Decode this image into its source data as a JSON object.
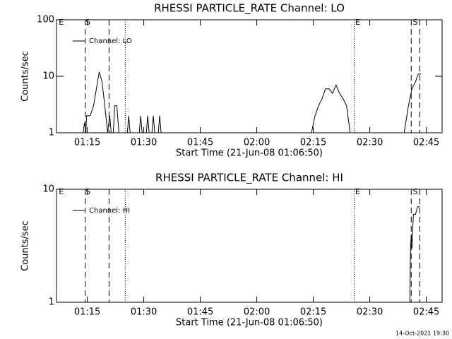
{
  "chart_data": [
    {
      "type": "line",
      "title": "RHESSI PARTICLE_RATE Channel: LO",
      "xlabel": "Start Time (21-Jun-08 01:06:50)",
      "ylabel": "Counts/sec",
      "log_y": true,
      "ylim": [
        1,
        100
      ],
      "yticks": [
        1,
        10,
        100
      ],
      "xlim": [
        66.83,
        169.2
      ],
      "xticks": [
        {
          "value": 75,
          "label": "01:15"
        },
        {
          "value": 90,
          "label": "01:30"
        },
        {
          "value": 105,
          "label": "01:45"
        },
        {
          "value": 120,
          "label": "02:00"
        },
        {
          "value": 135,
          "label": "02:15"
        },
        {
          "value": 150,
          "label": "02:30"
        },
        {
          "value": 165,
          "label": "02:45"
        }
      ],
      "markers": [
        {
          "x": 74.44,
          "style": "dashed"
        },
        {
          "x": 80.78,
          "style": "dashed"
        },
        {
          "x": 85.07,
          "style": "dotted"
        },
        {
          "x": 145.9,
          "style": "dotted"
        },
        {
          "x": 161.0,
          "style": "dashed"
        },
        {
          "x": 163.25,
          "style": "dashed"
        }
      ],
      "annotations": [
        {
          "text": "E",
          "x": 68.1
        },
        {
          "text": "S",
          "x": 75.2
        },
        {
          "text": "E",
          "x": 146.8
        },
        {
          "text": "S",
          "x": 162.1
        }
      ],
      "series": [
        {
          "name": "Channel: LO",
          "color": "#000000",
          "x": [
            73.88,
            74.25,
            74.63,
            74.81,
            75.75,
            76.68,
            77.43,
            78.17,
            78.92,
            79.66,
            80.41,
            80.97,
            81.34,
            81.9,
            82.28,
            82.84,
            83.4,
            null,
            85.63,
            86.0,
            86.38,
            null,
            88.81,
            89.18,
            89.55,
            null,
            90.67,
            91.04,
            91.42,
            null,
            92.16,
            92.54,
            92.91,
            null,
            93.84,
            94.22,
            94.59,
            null,
            134.51,
            135.45,
            136.38,
            137.31,
            138.25,
            139.18,
            140.11,
            141.04,
            141.98,
            142.91,
            143.84,
            144.78,
            null,
            159.14,
            160.26,
            161.19,
            162.13,
            162.87,
            163.62
          ],
          "values": [
            1,
            1.5,
            1,
            2,
            2,
            3,
            6,
            12,
            8,
            3,
            1,
            2,
            1,
            1,
            3,
            3,
            1,
            null,
            1,
            2,
            1,
            null,
            1,
            2,
            1,
            null,
            1,
            2,
            1,
            null,
            1,
            2,
            1,
            null,
            1,
            2,
            1,
            null,
            1,
            2,
            3,
            4,
            6,
            6,
            5,
            7,
            5,
            4,
            3,
            1,
            null,
            1,
            3,
            6,
            8,
            11,
            11
          ]
        }
      ]
    },
    {
      "type": "line",
      "title": "RHESSI PARTICLE_RATE Channel: HI",
      "xlabel": "Start Time (21-Jun-08 01:06:50)",
      "ylabel": "Counts/sec",
      "log_y": true,
      "ylim": [
        1,
        10
      ],
      "yticks": [
        1,
        10
      ],
      "xlim": [
        66.83,
        169.2
      ],
      "xticks": [
        {
          "value": 75,
          "label": "01:15"
        },
        {
          "value": 90,
          "label": "01:30"
        },
        {
          "value": 105,
          "label": "01:45"
        },
        {
          "value": 120,
          "label": "02:00"
        },
        {
          "value": 135,
          "label": "02:15"
        },
        {
          "value": 150,
          "label": "02:30"
        },
        {
          "value": 165,
          "label": "02:45"
        }
      ],
      "markers": [
        {
          "x": 74.44,
          "style": "dashed"
        },
        {
          "x": 80.78,
          "style": "dashed"
        },
        {
          "x": 85.07,
          "style": "dotted"
        },
        {
          "x": 145.9,
          "style": "dotted"
        },
        {
          "x": 161.0,
          "style": "dashed"
        },
        {
          "x": 163.25,
          "style": "dashed"
        }
      ],
      "annotations": [
        {
          "text": "E",
          "x": 68.1
        },
        {
          "text": "S",
          "x": 75.2
        },
        {
          "text": "E",
          "x": 146.8
        },
        {
          "text": "S",
          "x": 162.1
        }
      ],
      "series": [
        {
          "name": "Channel: HI",
          "color": "#000000",
          "x": [
            160.63,
            160.82,
            161.0,
            161.19,
            161.57,
            162.13,
            162.69,
            163.25
          ],
          "values": [
            1,
            3,
            4,
            3,
            6,
            6,
            7,
            7
          ]
        }
      ]
    }
  ],
  "footer": "14-Oct-2021 19:30"
}
